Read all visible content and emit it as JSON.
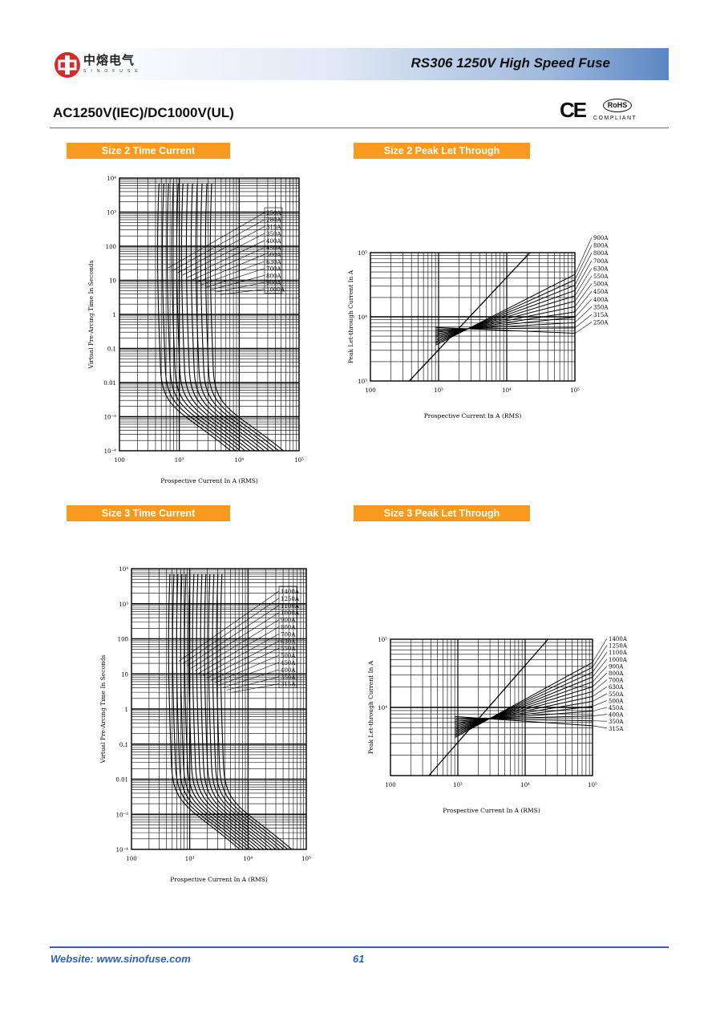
{
  "header": {
    "title": "RS306 1250V High Speed Fuse",
    "brand_cn": "中熔电气",
    "brand_en": "SINOFUSE",
    "accent_color": "#2a63b8"
  },
  "subtitle": "AC1250V(IEC)/DC1000V(UL)",
  "cert": {
    "ce": "CE",
    "rohs": "RoHS",
    "compliant": "COMPLIANT"
  },
  "sections": {
    "s2tc": "Size 2 Time Current",
    "s2pl": "Size 2 Peak Let Through",
    "s3tc": "Size 3 Time Current",
    "s3pl": "Size 3 Peak Let Through"
  },
  "footer": {
    "website": "Website: www.sinofuse.com",
    "page": "61"
  },
  "chart_data": [
    {
      "type": "line",
      "title": "Size 2 Time Current",
      "xlabel": "Prospective Current In A (RMS)",
      "ylabel": "Virtual Pre-Arcing Time In Seconds",
      "xticks": [
        "100",
        "10³",
        "10⁴",
        "10⁵"
      ],
      "yticks": [
        "10⁴",
        "10³",
        "100",
        "10",
        "1",
        "0.1",
        "0.01",
        "10⁻³",
        "10⁻⁴"
      ],
      "xlim": [
        100,
        100000
      ],
      "ylim": [
        0.0001,
        10000
      ],
      "xscale": "log",
      "yscale": "log",
      "series_labels": [
        "250A",
        "280A",
        "315A",
        "350A",
        "400A",
        "450A",
        "500A",
        "630A",
        "700A",
        "800A",
        "900A",
        "1000A"
      ]
    },
    {
      "type": "line",
      "title": "Size 2 Peak Let Through",
      "xlabel": "Prospective Current In A (RMS)",
      "ylabel": "Peak Let-through Current In A",
      "xticks": [
        "100",
        "10³",
        "10⁴",
        "10⁵"
      ],
      "yticks": [
        "10⁵",
        "10⁴",
        "10³"
      ],
      "xlim": [
        100,
        100000
      ],
      "ylim": [
        1000,
        100000
      ],
      "xscale": "log",
      "yscale": "log",
      "series_labels": [
        "900A",
        "800A",
        "800A",
        "700A",
        "630A",
        "550A",
        "500A",
        "450A",
        "400A",
        "350A",
        "315A",
        "250A"
      ]
    },
    {
      "type": "line",
      "title": "Size 3 Time Current",
      "xlabel": "Prospective Current In A (RMS)",
      "ylabel": "Virtual Pre-Arcing Time In Seconds",
      "xticks": [
        "100",
        "10³",
        "10⁴",
        "10⁵"
      ],
      "yticks": [
        "10⁴",
        "10³",
        "100",
        "10",
        "1",
        "0.1",
        "0.01",
        "10⁻³",
        "10⁻⁴"
      ],
      "xlim": [
        100,
        100000
      ],
      "ylim": [
        0.0001,
        10000
      ],
      "xscale": "log",
      "yscale": "log",
      "series_labels": [
        "1400A",
        "1250A",
        "1100A",
        "1000A",
        "900A",
        "800A",
        "700A",
        "630A",
        "550A",
        "500A",
        "450A",
        "400A",
        "350A",
        "315A"
      ]
    },
    {
      "type": "line",
      "title": "Size 3 Peak Let Through",
      "xlabel": "Prospective Current In A (RMS)",
      "ylabel": "Peak Let-through Current In A",
      "xticks": [
        "100",
        "10³",
        "10⁴",
        "10⁵"
      ],
      "yticks": [
        "10⁵",
        "10⁴"
      ],
      "xlim": [
        100,
        100000
      ],
      "ylim": [
        10000,
        1000000
      ],
      "xscale": "log",
      "yscale": "log",
      "series_labels": [
        "1400A",
        "1250A",
        "1100A",
        "1000A",
        "900A",
        "800A",
        "700A",
        "630A",
        "550A",
        "500A",
        "450A",
        "400A",
        "350A",
        "315A"
      ]
    }
  ]
}
